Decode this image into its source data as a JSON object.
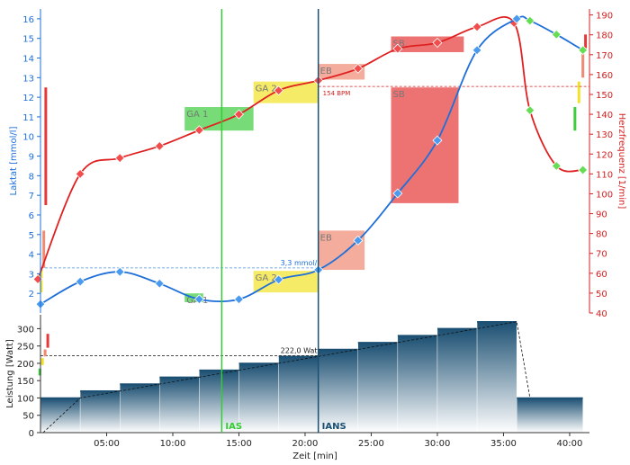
{
  "chart_data": {
    "type": "line",
    "top": {
      "xlim": [
        0,
        41.5
      ],
      "left_axis": {
        "label": "Laktat [mmol/l]",
        "range": [
          1,
          16.5
        ],
        "ticks": [
          2,
          3,
          4,
          5,
          6,
          7,
          8,
          9,
          10,
          11,
          12,
          13,
          14,
          15,
          16
        ],
        "color": "#1E6FD9"
      },
      "right_axis": {
        "label": "Herzfrequenz [1/min]",
        "range": [
          40,
          193
        ],
        "ticks": [
          40,
          50,
          60,
          70,
          80,
          90,
          100,
          110,
          120,
          130,
          140,
          150,
          160,
          170,
          180,
          190
        ],
        "color": "#D62020"
      },
      "lactate_points": [
        [
          0,
          1.45
        ],
        [
          3,
          2.6
        ],
        [
          6,
          3.1
        ],
        [
          9,
          2.5
        ],
        [
          12,
          1.7
        ],
        [
          15,
          1.7
        ],
        [
          18,
          2.7
        ],
        [
          21,
          3.2
        ],
        [
          24,
          4.7
        ],
        [
          27,
          7.1
        ],
        [
          30,
          9.8
        ],
        [
          33,
          14.4
        ],
        [
          36,
          16.0
        ],
        [
          37,
          15.9
        ],
        [
          39,
          15.2
        ],
        [
          41,
          14.4
        ]
      ],
      "heart_rate_points": [
        [
          -0.2,
          57
        ],
        [
          3,
          110
        ],
        [
          6,
          118
        ],
        [
          9,
          124
        ],
        [
          12,
          132
        ],
        [
          15,
          140
        ],
        [
          18,
          152
        ],
        [
          21,
          157
        ],
        [
          24,
          163
        ],
        [
          27,
          173
        ],
        [
          30,
          176
        ],
        [
          33,
          184
        ],
        [
          35.8,
          186
        ],
        [
          37,
          142
        ],
        [
          39,
          114
        ],
        [
          41,
          112
        ]
      ],
      "zones": [
        {
          "label": "GA 1",
          "x0": 10.9,
          "x1": 16.1,
          "y0": 10.3,
          "y1": 11.5,
          "axis": "left",
          "color": "#3DCC3D"
        },
        {
          "label": "GA 2",
          "x0": 16.1,
          "x1": 21.0,
          "y0": 11.7,
          "y1": 12.8,
          "axis": "left",
          "color": "#F2E227"
        },
        {
          "label": "EB",
          "x0": 21.0,
          "x1": 24.5,
          "y0": 12.9,
          "y1": 13.7,
          "axis": "left",
          "color": "#F08A72"
        },
        {
          "label": "SB",
          "x0": 26.5,
          "x1": 32.0,
          "y0": 14.3,
          "y1": 15.1,
          "axis": "left",
          "color": "#E63838"
        },
        {
          "label": "GA 1",
          "x0": 10.9,
          "x1": 12.3,
          "y0": 1.55,
          "y1": 2.0,
          "axis": "left",
          "color": "#3DCC3D"
        },
        {
          "label": "GA 2",
          "x0": 16.1,
          "x1": 21.0,
          "y0": 2.05,
          "y1": 3.15,
          "axis": "left",
          "color": "#F2E227"
        },
        {
          "label": "EB",
          "x0": 21.0,
          "x1": 24.5,
          "y0": 3.2,
          "y1": 5.2,
          "axis": "left",
          "color": "#F08A72"
        },
        {
          "label": "SB",
          "x0": 26.5,
          "x1": 31.6,
          "y0": 6.6,
          "y1": 12.5,
          "axis": "left",
          "color": "#E63838"
        }
      ],
      "left_bars": [
        {
          "x": 0.4,
          "y0": 6.5,
          "y1": 12.5,
          "color": "#E63838"
        },
        {
          "x": 0.25,
          "y0": 3.3,
          "y1": 5.2,
          "color": "#F08A72"
        },
        {
          "x": 0.05,
          "y0": 2.05,
          "y1": 3.2,
          "color": "#F2E227"
        }
      ],
      "right_bars": [
        {
          "x": 41.2,
          "y0": 14.5,
          "y1": 15.2,
          "color": "#E63838"
        },
        {
          "x": 41.0,
          "y0": 13.0,
          "y1": 14.5,
          "color": "#F08A72"
        },
        {
          "x": 40.7,
          "y0": 11.7,
          "y1": 12.8,
          "color": "#F2E227"
        },
        {
          "x": 40.4,
          "y0": 10.3,
          "y1": 11.5,
          "color": "#3DCC3D"
        }
      ],
      "annotations": {
        "lactate_threshold_label": "3,3 mmol/l",
        "lactate_threshold_value": 3.3,
        "hr_threshold_label": "154 BPM",
        "hr_threshold_value": 154
      }
    },
    "bottom": {
      "ylabel": "Leistung [Watt]",
      "ylim": [
        0,
        340
      ],
      "yticks": [
        0,
        50,
        100,
        150,
        200,
        250,
        300
      ],
      "xlabel": "Zeit [min]",
      "xticks": [
        5,
        10,
        15,
        20,
        25,
        30,
        35,
        40
      ],
      "xtick_labels": [
        "05:00",
        "10:00",
        "15:00",
        "20:00",
        "25:00",
        "30:00",
        "35:00",
        "40:00"
      ],
      "steps": [
        {
          "x0": 0,
          "x1": 3,
          "watt": 100
        },
        {
          "x0": 3,
          "x1": 6,
          "watt": 120
        },
        {
          "x0": 6,
          "x1": 9,
          "watt": 140
        },
        {
          "x0": 9,
          "x1": 12,
          "watt": 160
        },
        {
          "x0": 12,
          "x1": 15,
          "watt": 180
        },
        {
          "x0": 15,
          "x1": 18,
          "watt": 200
        },
        {
          "x0": 18,
          "x1": 21,
          "watt": 220
        },
        {
          "x0": 21,
          "x1": 24,
          "watt": 240
        },
        {
          "x0": 24,
          "x1": 27,
          "watt": 260
        },
        {
          "x0": 27,
          "x1": 30,
          "watt": 280
        },
        {
          "x0": 30,
          "x1": 33,
          "watt": 300
        },
        {
          "x0": 33,
          "x1": 36,
          "watt": 320
        },
        {
          "x0": 36,
          "x1": 41,
          "watt": 100
        }
      ],
      "threshold_label": "222,0 Watt",
      "threshold_value": 222,
      "left_bars": [
        {
          "x": 0.55,
          "y0": 245,
          "y1": 285,
          "color": "#E63838"
        },
        {
          "x": 0.35,
          "y0": 220,
          "y1": 240,
          "color": "#F08A72"
        },
        {
          "x": 0.15,
          "y0": 195,
          "y1": 215,
          "color": "#F2E227"
        },
        {
          "x": -0.05,
          "y0": 165,
          "y1": 185,
          "color": "#3DCC3D"
        }
      ]
    },
    "markers": [
      {
        "label": "IAS",
        "x": 13.7,
        "color": "#33CC33"
      },
      {
        "label": "IANS",
        "x": 21.0,
        "color": "#1B4F72"
      }
    ]
  }
}
